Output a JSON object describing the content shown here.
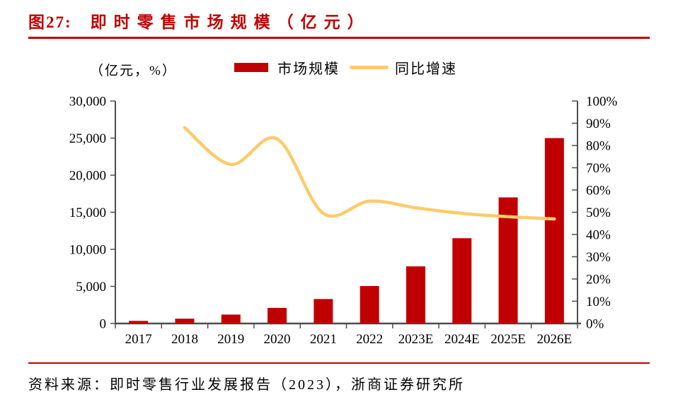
{
  "header": {
    "fig_label": "图27:",
    "title": "即时零售市场规模（亿元）"
  },
  "unit_label": "（亿元，%）",
  "legend": {
    "bar_label": "市场规模",
    "line_label": "同比增速"
  },
  "footer": {
    "source": "资料来源：即时零售行业发展报告（2023），浙商证券研究所"
  },
  "colors": {
    "accent_red": "#C00000",
    "line_yellow": "#FBCB6B",
    "axis_gray": "#4D4D4D",
    "text_black": "#000000"
  },
  "chart_data": {
    "type": "bar",
    "subtype": "bar+line dual axis",
    "title": "即时零售市场规模（亿元）",
    "categories": [
      "2017",
      "2018",
      "2019",
      "2020",
      "2021",
      "2022",
      "2023E",
      "2024E",
      "2025E",
      "2026E"
    ],
    "series": [
      {
        "name": "市场规模",
        "type": "bar",
        "axis": "left",
        "unit": "亿元",
        "color": "#C00000",
        "values": [
          350,
          650,
          1200,
          2100,
          3300,
          5050,
          7700,
          11500,
          17000,
          25000
        ]
      },
      {
        "name": "同比增速",
        "type": "line",
        "axis": "right",
        "unit": "%",
        "color": "#FBCB6B",
        "smooth": true,
        "values": [
          null,
          88,
          71.5,
          83,
          49.5,
          55,
          52,
          49.5,
          48,
          47
        ]
      }
    ],
    "left_axis": {
      "min": 0,
      "max": 30000,
      "tick_step": 5000,
      "tick_labels_top_to_bottom": [
        "30,000",
        "25,000",
        "20,000",
        "15,000",
        "10,000",
        "5,000",
        "0"
      ]
    },
    "right_axis": {
      "min": 0,
      "max": 100,
      "tick_step": 10,
      "tick_labels_top_to_bottom": [
        "100%",
        "90%",
        "80%",
        "70%",
        "60%",
        "50%",
        "40%",
        "30%",
        "20%",
        "10%",
        "0%"
      ]
    },
    "grid": false,
    "legend_position": "top"
  }
}
